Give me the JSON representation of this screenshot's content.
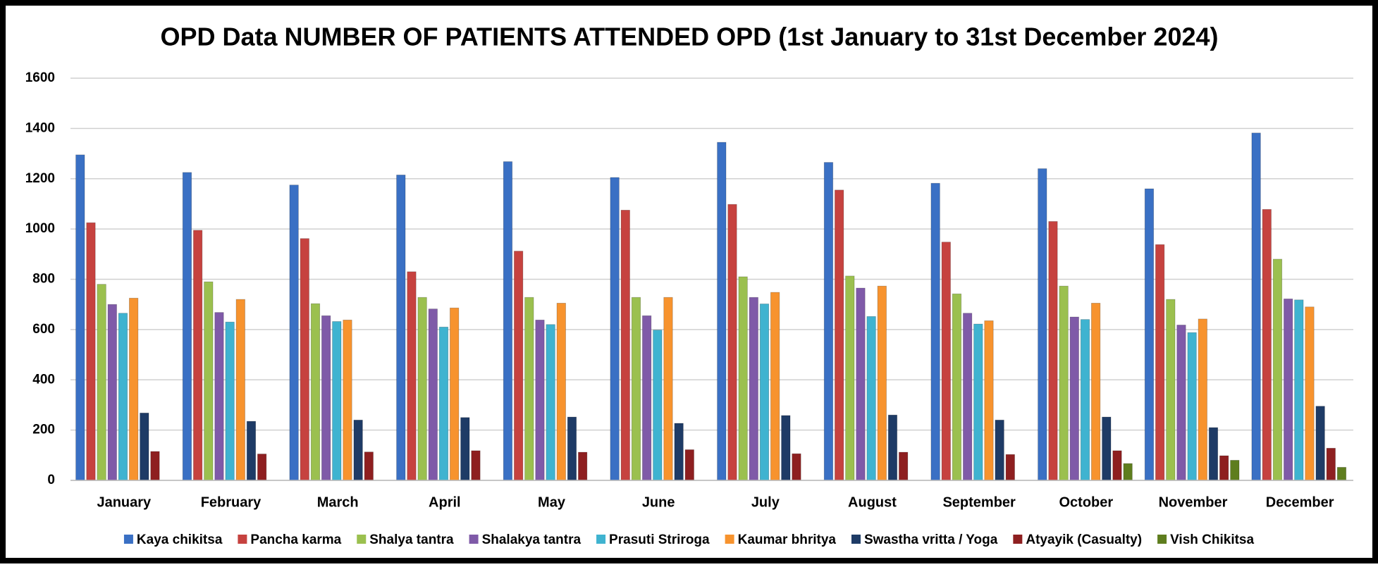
{
  "chart_data": {
    "type": "bar",
    "title": "OPD Data NUMBER OF PATIENTS ATTENDED OPD (1st January to 31st December 2024)",
    "categories": [
      "January",
      "February",
      "March",
      "April",
      "May",
      "June",
      "July",
      "August",
      "September",
      "October",
      "November",
      "December"
    ],
    "series": [
      {
        "name": "Kaya chikitsa",
        "color": "#3a70c4",
        "values": [
          1295,
          1225,
          1175,
          1215,
          1268,
          1205,
          1345,
          1265,
          1182,
          1240,
          1160,
          1382
        ]
      },
      {
        "name": "Pancha karma",
        "color": "#c6423f",
        "values": [
          1025,
          995,
          962,
          830,
          912,
          1075,
          1098,
          1155,
          948,
          1030,
          938,
          1078
        ]
      },
      {
        "name": "Shalya tantra",
        "color": "#9bc04f",
        "values": [
          780,
          790,
          703,
          728,
          728,
          728,
          810,
          813,
          742,
          773,
          720,
          880
        ]
      },
      {
        "name": "Shalakya tantra",
        "color": "#7f5aa8",
        "values": [
          700,
          668,
          655,
          682,
          638,
          655,
          728,
          765,
          665,
          650,
          618,
          722
        ]
      },
      {
        "name": "Prasuti Striroga",
        "color": "#3fb3d0",
        "values": [
          665,
          630,
          632,
          610,
          620,
          598,
          702,
          652,
          622,
          640,
          588,
          718
        ]
      },
      {
        "name": "Kaumar bhritya",
        "color": "#f7932e",
        "values": [
          725,
          720,
          638,
          686,
          705,
          728,
          748,
          773,
          635,
          705,
          642,
          690
        ]
      },
      {
        "name": "Swastha vritta / Yoga",
        "color": "#1e3b66",
        "values": [
          268,
          235,
          240,
          250,
          252,
          227,
          258,
          260,
          240,
          252,
          210,
          295
        ]
      },
      {
        "name": "Atyayik (Casualty)",
        "color": "#8e1f20",
        "values": [
          115,
          105,
          113,
          118,
          112,
          122,
          106,
          112,
          103,
          118,
          98,
          128
        ]
      },
      {
        "name": "Vish Chikitsa",
        "color": "#5e7d1e",
        "values": [
          0,
          0,
          0,
          0,
          0,
          0,
          0,
          0,
          0,
          67,
          80,
          52
        ]
      }
    ],
    "ylim": [
      0,
      1600
    ],
    "yticks": [
      0,
      200,
      400,
      600,
      800,
      1000,
      1200,
      1400,
      1600
    ],
    "grid": true,
    "legend": "bottom"
  }
}
